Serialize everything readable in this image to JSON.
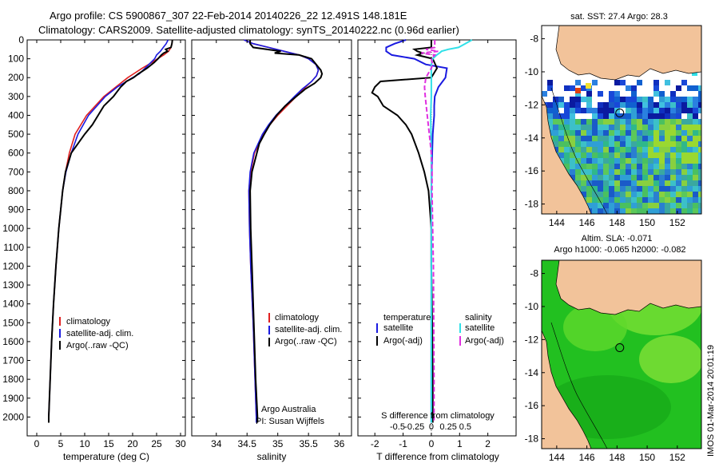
{
  "header": {
    "line1": "Argo profile: CS 5900867_307 22-Feb-2014 20140226_22 12.491S 148.181E",
    "line2": "Climatology: CARS2009. Satellite-adjusted climatology: synTS_20140222.nc (0.96d earlier)"
  },
  "credits": {
    "line1": "Argo Australia",
    "line2": "PI: Susan Wijffels"
  },
  "stamp": "IMOS 01-Mar-2014 20:01:19",
  "colors": {
    "climatology": "#e02020",
    "satellite": "#1a1ae0",
    "argo": "#000000",
    "cyan": "#30e0e8",
    "magenta": "#e030e0",
    "land": "#f2c39a"
  },
  "chart_data": [
    {
      "id": "temperature",
      "type": "line",
      "xlabel": "temperature (deg C)",
      "ylabel": "",
      "xlim": [
        -2,
        31
      ],
      "ylim": [
        2100,
        0
      ],
      "xticks": [
        "0",
        "5",
        "10",
        "15",
        "20",
        "25",
        "30"
      ],
      "xtick_values": [
        0,
        5,
        10,
        15,
        20,
        25,
        30
      ],
      "yticks": [
        "0",
        "100",
        "200",
        "300",
        "400",
        "500",
        "600",
        "700",
        "800",
        "900",
        "1000",
        "1100",
        "1200",
        "1300",
        "1400",
        "1500",
        "1600",
        "1700",
        "1800",
        "1900",
        "2000"
      ],
      "legend": [
        "climatology",
        "satellite-adj. clim.",
        "Argo(..raw -QC)"
      ],
      "series": [
        {
          "name": "climatology",
          "color_key": "climatology",
          "depth": [
            0,
            20,
            40,
            60,
            80,
            100,
            120,
            150,
            180,
            200,
            250,
            300,
            400,
            500,
            600,
            700,
            800,
            900,
            1000,
            1200,
            1400,
            1600,
            1800,
            2000,
            2030
          ],
          "values": [
            28.3,
            28.2,
            28.0,
            27.5,
            26.5,
            25.2,
            24.0,
            22.0,
            20.2,
            19.0,
            16.5,
            14.0,
            10.4,
            8.0,
            6.8,
            6.0,
            5.4,
            5.0,
            4.6,
            4.0,
            3.5,
            3.1,
            2.8,
            2.5,
            2.5
          ]
        },
        {
          "name": "satellite-adj. clim.",
          "color_key": "satellite",
          "depth": [
            0,
            20,
            40,
            60,
            80,
            100,
            120,
            150,
            180,
            200,
            250,
            300,
            400,
            500,
            600,
            700,
            800,
            900,
            1000,
            1200,
            1400,
            1600,
            1800,
            2000,
            2030
          ],
          "values": [
            27.4,
            27.0,
            26.4,
            25.8,
            25.0,
            24.6,
            23.8,
            22.6,
            21.4,
            20.0,
            16.8,
            14.3,
            10.8,
            8.6,
            7.2,
            6.1,
            5.4,
            5.0,
            4.6,
            4.0,
            3.5,
            3.1,
            2.8,
            2.5,
            2.5
          ]
        },
        {
          "name": "Argo(..raw -QC)",
          "color_key": "argo",
          "depth": [
            0,
            20,
            40,
            50,
            60,
            70,
            80,
            100,
            120,
            150,
            180,
            200,
            220,
            250,
            300,
            350,
            400,
            450,
            500,
            600,
            700,
            800,
            900,
            1000,
            1200,
            1400,
            1600,
            1800,
            2000,
            2030
          ],
          "values": [
            28.3,
            28.2,
            28.0,
            26.9,
            27.3,
            26.5,
            26.0,
            25.3,
            24.5,
            23.0,
            21.2,
            20.2,
            18.7,
            17.5,
            16.0,
            14.0,
            12.8,
            11.6,
            10.0,
            7.2,
            6.0,
            5.4,
            5.0,
            4.6,
            4.0,
            3.5,
            3.1,
            2.8,
            2.5,
            2.5
          ]
        }
      ]
    },
    {
      "id": "salinity",
      "type": "line",
      "xlabel": "salinity",
      "xlim": [
        33.6,
        36.2
      ],
      "ylim": [
        2100,
        0
      ],
      "xticks": [
        "34",
        "34.5",
        "35",
        "35.5",
        "36"
      ],
      "xtick_values": [
        34,
        34.5,
        35,
        35.5,
        36
      ],
      "legend": [
        "climatology",
        "satellite-adj. clim.",
        "Argo(..raw -QC)"
      ],
      "series": [
        {
          "name": "climatology",
          "color_key": "climatology",
          "depth": [
            0,
            20,
            40,
            60,
            80,
            100,
            130,
            160,
            190,
            220,
            260,
            300,
            350,
            400,
            450,
            500,
            600,
            700,
            800,
            1000,
            1200,
            1500,
            1800,
            2000,
            2030
          ],
          "values": [
            34.45,
            34.6,
            34.85,
            35.1,
            35.35,
            35.5,
            35.62,
            35.66,
            35.63,
            35.55,
            35.42,
            35.3,
            35.15,
            35.0,
            34.87,
            34.77,
            34.62,
            34.56,
            34.53,
            34.54,
            34.56,
            34.6,
            34.63,
            34.65,
            34.65
          ]
        },
        {
          "name": "satellite-adj. clim.",
          "color_key": "satellite",
          "depth": [
            0,
            20,
            40,
            60,
            80,
            100,
            130,
            160,
            190,
            220,
            260,
            300,
            350,
            400,
            450,
            500,
            600,
            700,
            800,
            1000,
            1200,
            1500,
            1800,
            2000,
            2030
          ],
          "values": [
            34.45,
            34.6,
            34.85,
            35.1,
            35.35,
            35.5,
            35.62,
            35.66,
            35.63,
            35.55,
            35.4,
            35.27,
            35.12,
            34.97,
            34.85,
            34.75,
            34.61,
            34.55,
            34.53,
            34.54,
            34.56,
            34.6,
            34.63,
            34.65,
            34.65
          ]
        },
        {
          "name": "Argo(..raw -QC)",
          "color_key": "argo",
          "depth": [
            0,
            20,
            40,
            60,
            70,
            80,
            100,
            120,
            140,
            160,
            180,
            200,
            230,
            260,
            300,
            350,
            400,
            450,
            500,
            550,
            600,
            700,
            800,
            1000,
            1200,
            1500,
            1800,
            2000,
            2030
          ],
          "values": [
            34.55,
            34.55,
            34.6,
            35.05,
            34.95,
            35.35,
            35.55,
            35.6,
            35.65,
            35.7,
            35.72,
            35.7,
            35.6,
            35.45,
            35.3,
            35.12,
            34.98,
            34.87,
            34.78,
            34.7,
            34.66,
            34.58,
            34.55,
            34.56,
            34.58,
            34.61,
            34.64,
            34.67,
            34.67
          ]
        }
      ]
    },
    {
      "id": "difference",
      "type": "line",
      "xlabel": "T difference from climatology",
      "x2label": "S difference from climatology",
      "xlim": [
        -2.6,
        3.0
      ],
      "ylim": [
        2100,
        0
      ],
      "xticks": [
        "-2",
        "-1",
        "0",
        "1",
        "2"
      ],
      "xtick_values": [
        -2,
        -1,
        0,
        1,
        2
      ],
      "x2ticks": [
        "-0.5",
        "-0.25",
        "0",
        "0.25",
        "0.5"
      ],
      "x2tick_values": [
        -0.5,
        -0.25,
        0,
        0.25,
        0.5
      ],
      "legend_temperature_title": "temperature",
      "legend_salinity_title": "salinity",
      "legend": [
        "satellite",
        "Argo(-adj)",
        "satellite",
        "Argo(-adj)"
      ],
      "series": [
        {
          "name": "T satellite",
          "color_key": "satellite",
          "unit": "T",
          "depth": [
            0,
            20,
            40,
            60,
            80,
            100,
            130,
            150,
            200,
            250,
            300,
            350,
            400,
            500,
            600,
            800,
            1000,
            1500,
            2030
          ],
          "values": [
            -0.9,
            -1.3,
            -1.6,
            -1.6,
            -1.4,
            -0.6,
            -0.2,
            0.55,
            0.5,
            0.25,
            0.12,
            0.1,
            0.1,
            0.05,
            0.03,
            0.0,
            0.0,
            0.0,
            0.0
          ]
        },
        {
          "name": "T Argo(-adj)",
          "color_key": "argo",
          "unit": "T",
          "depth": [
            0,
            20,
            40,
            50,
            60,
            70,
            80,
            100,
            150,
            200,
            220,
            250,
            280,
            300,
            350,
            400,
            450,
            500,
            600,
            700,
            800,
            1000,
            1200,
            1500,
            1800,
            2030
          ],
          "values": [
            0.0,
            0.0,
            0.0,
            -0.6,
            -0.5,
            -0.3,
            -0.5,
            0.05,
            0.2,
            0.0,
            -1.8,
            -2.0,
            -2.1,
            -1.9,
            -1.7,
            -1.2,
            -0.9,
            -0.7,
            -0.45,
            -0.25,
            -0.1,
            0.0,
            0.0,
            0.03,
            0.05,
            0.05
          ]
        },
        {
          "name": "S satellite",
          "color_key": "cyan",
          "unit": "S",
          "depth": [
            0,
            10,
            20,
            30,
            40,
            50,
            60,
            70,
            80,
            100,
            130,
            160,
            200,
            300,
            400,
            500,
            600,
            800,
            1000,
            1500,
            1800,
            2030
          ],
          "values": [
            0.6,
            0.55,
            0.5,
            0.45,
            0.4,
            0.25,
            0.15,
            0.12,
            0.08,
            0.02,
            0.0,
            0.0,
            0.0,
            0.0,
            -0.01,
            -0.005,
            0.0,
            0.0,
            0.0,
            0.0,
            0.0,
            0.0
          ]
        },
        {
          "name": "S Argo(-adj)",
          "color_key": "magenta",
          "unit": "S",
          "depth": [
            0,
            20,
            40,
            50,
            60,
            70,
            80,
            100,
            130,
            150,
            200,
            250,
            300,
            400,
            500,
            600,
            700,
            800,
            1000,
            1200,
            1500,
            1800,
            2030
          ],
          "values": [
            0.05,
            0.05,
            0.05,
            -0.08,
            0.1,
            -0.15,
            0.05,
            0.0,
            0.02,
            0.0,
            -0.08,
            -0.1,
            -0.09,
            -0.06,
            -0.03,
            0.0,
            0.01,
            0.01,
            0.02,
            0.03,
            0.035,
            0.04,
            0.04
          ]
        }
      ]
    },
    {
      "id": "sst_map",
      "type": "heatmap",
      "title": "sat. SST: 27.4 Argo: 28.3",
      "xticks": [
        "144",
        "146",
        "148",
        "150",
        "152"
      ],
      "xtick_values": [
        144,
        146,
        148,
        150,
        152
      ],
      "yticks": [
        "-8",
        "-10",
        "-12",
        "-14",
        "-16",
        "-18"
      ],
      "ytick_values": [
        -8,
        -10,
        -12,
        -14,
        -16,
        -18
      ],
      "xlim": [
        143.0,
        153.6
      ],
      "ylim": [
        -18.6,
        -7.2
      ],
      "argo_position": [
        148.181,
        -12.491
      ]
    },
    {
      "id": "sla_map",
      "type": "heatmap",
      "title1": "Altim. SLA: -0.071",
      "title2": "Argo h1000: -0.065 h2000: -0.082",
      "xticks": [
        "144",
        "146",
        "148",
        "150",
        "152"
      ],
      "xtick_values": [
        144,
        146,
        148,
        150,
        152
      ],
      "yticks": [
        "-8",
        "-10",
        "-12",
        "-14",
        "-16",
        "-18"
      ],
      "ytick_values": [
        -8,
        -10,
        -12,
        -14,
        -16,
        -18
      ],
      "xlim": [
        143.0,
        153.6
      ],
      "ylim": [
        -18.6,
        -7.2
      ],
      "argo_position": [
        148.181,
        -12.491
      ]
    }
  ]
}
